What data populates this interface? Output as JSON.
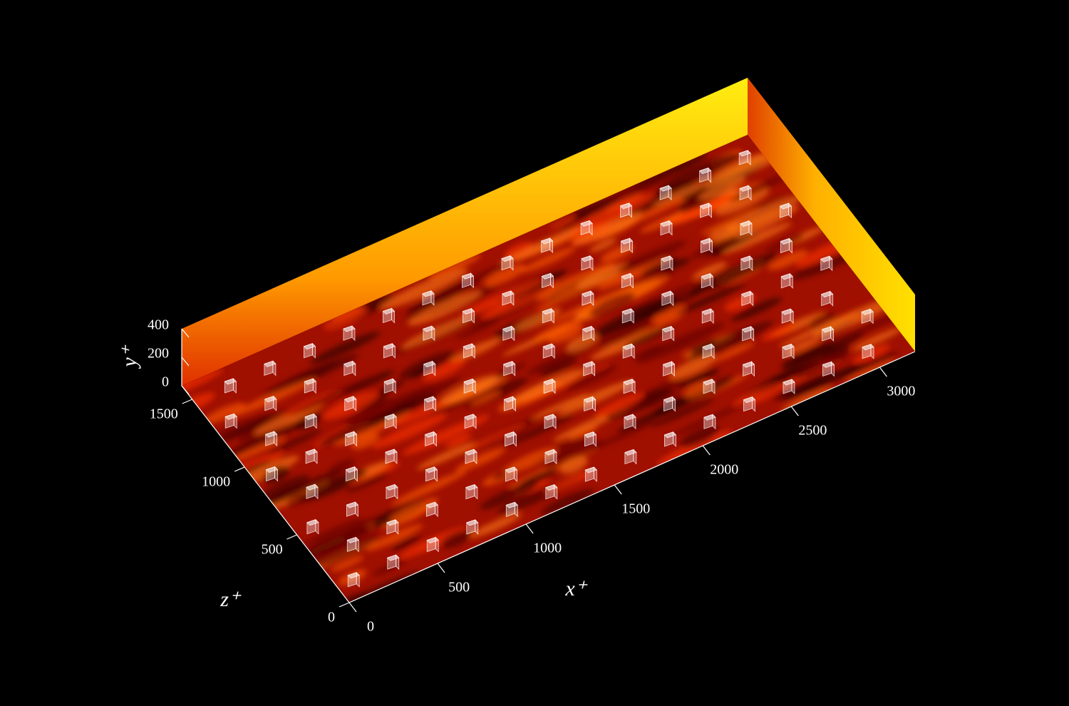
{
  "chart_data": {
    "type": "surface3d",
    "xlabel": "x⁺",
    "ylabel": "y⁺",
    "zlabel": "z⁺",
    "xlim": [
      0,
      3200
    ],
    "ylim": [
      0,
      400
    ],
    "zlim": [
      0,
      1600
    ],
    "xticks": [
      0,
      500,
      1000,
      1500,
      2000,
      2500,
      3000
    ],
    "yticks": [
      0,
      200,
      400
    ],
    "zticks": [
      0,
      500,
      1000,
      1500
    ],
    "background": "#000000",
    "axis_color": "#ffffff"
  }
}
